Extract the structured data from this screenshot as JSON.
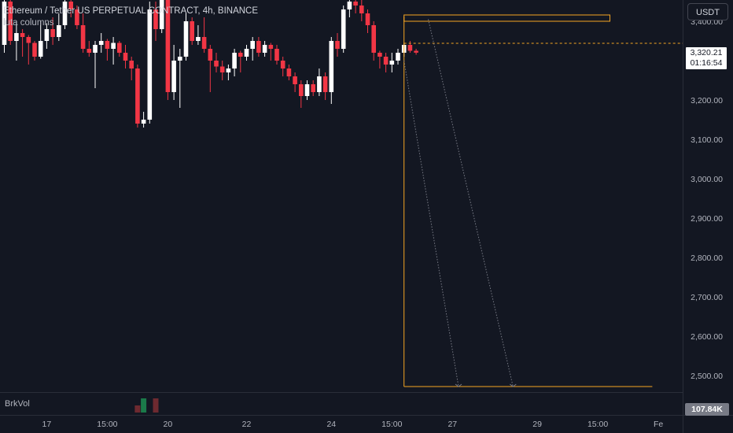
{
  "header": {
    "title": "Ethereum / Tether US PERPETUAL CONTRACT, 4h, BINANCE",
    "indicator": "luta columns"
  },
  "currency_button": "USDT",
  "price_badge": {
    "price": "3,320.21",
    "countdown": "01:16:54"
  },
  "volume_pane": {
    "label": "BrkVol",
    "value_badge": "107.84K"
  },
  "colors": {
    "background": "#131722",
    "up_candle": "#ffffff",
    "down_candle": "#f23645",
    "annotation": "#f5a623",
    "dotted_arrow": "#787b86",
    "vol_green": "#1b7a4a",
    "vol_red": "#6e2a30"
  },
  "chart_data": {
    "type": "candlestick",
    "symbol": "ETHUSDT.P",
    "timeframe": "4h",
    "ylim": [
      2460,
      3480
    ],
    "y_ticks": [
      "3,400.00",
      "3,200.00",
      "3,100.00",
      "3,000.00",
      "2,900.00",
      "2,800.00",
      "2,700.00",
      "2,600.00",
      "2,500.00"
    ],
    "x_ticks": [
      {
        "label": "17",
        "bar": 7
      },
      {
        "label": "15:00",
        "bar": 17
      },
      {
        "label": "20",
        "bar": 27
      },
      {
        "label": "22",
        "bar": 40
      },
      {
        "label": "24",
        "bar": 54
      },
      {
        "label": "15:00",
        "bar": 64
      },
      {
        "label": "27",
        "bar": 74
      },
      {
        "label": "29",
        "bar": 88
      },
      {
        "label": "15:00",
        "bar": 98
      },
      {
        "label": "Fe",
        "bar": 108
      }
    ],
    "candles": [
      {
        "o": 3340,
        "h": 3470,
        "l": 3320,
        "c": 3450
      },
      {
        "o": 3450,
        "h": 3455,
        "l": 3340,
        "c": 3350
      },
      {
        "o": 3350,
        "h": 3400,
        "l": 3300,
        "c": 3370
      },
      {
        "o": 3370,
        "h": 3380,
        "l": 3310,
        "c": 3360
      },
      {
        "o": 3360,
        "h": 3365,
        "l": 3290,
        "c": 3345
      },
      {
        "o": 3345,
        "h": 3350,
        "l": 3300,
        "c": 3310
      },
      {
        "o": 3310,
        "h": 3400,
        "l": 3305,
        "c": 3350
      },
      {
        "o": 3350,
        "h": 3395,
        "l": 3330,
        "c": 3380
      },
      {
        "o": 3380,
        "h": 3410,
        "l": 3340,
        "c": 3360
      },
      {
        "o": 3360,
        "h": 3420,
        "l": 3350,
        "c": 3390
      },
      {
        "o": 3390,
        "h": 3460,
        "l": 3380,
        "c": 3450
      },
      {
        "o": 3450,
        "h": 3470,
        "l": 3410,
        "c": 3430
      },
      {
        "o": 3430,
        "h": 3440,
        "l": 3380,
        "c": 3390
      },
      {
        "o": 3390,
        "h": 3420,
        "l": 3320,
        "c": 3330
      },
      {
        "o": 3330,
        "h": 3350,
        "l": 3310,
        "c": 3320
      },
      {
        "o": 3320,
        "h": 3350,
        "l": 3230,
        "c": 3340
      },
      {
        "o": 3340,
        "h": 3370,
        "l": 3320,
        "c": 3350
      },
      {
        "o": 3350,
        "h": 3355,
        "l": 3300,
        "c": 3330
      },
      {
        "o": 3330,
        "h": 3360,
        "l": 3290,
        "c": 3345
      },
      {
        "o": 3345,
        "h": 3350,
        "l": 3310,
        "c": 3320
      },
      {
        "o": 3320,
        "h": 3340,
        "l": 3280,
        "c": 3300
      },
      {
        "o": 3300,
        "h": 3310,
        "l": 3250,
        "c": 3280
      },
      {
        "o": 3280,
        "h": 3290,
        "l": 3130,
        "c": 3140
      },
      {
        "o": 3140,
        "h": 3170,
        "l": 3130,
        "c": 3150
      },
      {
        "o": 3150,
        "h": 3450,
        "l": 3140,
        "c": 3430
      },
      {
        "o": 3430,
        "h": 3450,
        "l": 3350,
        "c": 3380
      },
      {
        "o": 3380,
        "h": 3470,
        "l": 3370,
        "c": 3460
      },
      {
        "o": 3460,
        "h": 3470,
        "l": 3200,
        "c": 3220
      },
      {
        "o": 3220,
        "h": 3340,
        "l": 3200,
        "c": 3300
      },
      {
        "o": 3300,
        "h": 3330,
        "l": 3180,
        "c": 3310
      },
      {
        "o": 3310,
        "h": 3420,
        "l": 3300,
        "c": 3400
      },
      {
        "o": 3400,
        "h": 3410,
        "l": 3340,
        "c": 3350
      },
      {
        "o": 3350,
        "h": 3390,
        "l": 3340,
        "c": 3360
      },
      {
        "o": 3360,
        "h": 3410,
        "l": 3320,
        "c": 3330
      },
      {
        "o": 3330,
        "h": 3340,
        "l": 3220,
        "c": 3300
      },
      {
        "o": 3300,
        "h": 3320,
        "l": 3270,
        "c": 3285
      },
      {
        "o": 3285,
        "h": 3300,
        "l": 3250,
        "c": 3270
      },
      {
        "o": 3270,
        "h": 3290,
        "l": 3250,
        "c": 3280
      },
      {
        "o": 3280,
        "h": 3330,
        "l": 3260,
        "c": 3320
      },
      {
        "o": 3320,
        "h": 3325,
        "l": 3270,
        "c": 3310
      },
      {
        "o": 3310,
        "h": 3340,
        "l": 3300,
        "c": 3330
      },
      {
        "o": 3330,
        "h": 3360,
        "l": 3300,
        "c": 3350
      },
      {
        "o": 3350,
        "h": 3360,
        "l": 3310,
        "c": 3320
      },
      {
        "o": 3320,
        "h": 3350,
        "l": 3310,
        "c": 3340
      },
      {
        "o": 3340,
        "h": 3345,
        "l": 3300,
        "c": 3330
      },
      {
        "o": 3330,
        "h": 3340,
        "l": 3290,
        "c": 3300
      },
      {
        "o": 3300,
        "h": 3310,
        "l": 3260,
        "c": 3280
      },
      {
        "o": 3280,
        "h": 3290,
        "l": 3250,
        "c": 3260
      },
      {
        "o": 3260,
        "h": 3270,
        "l": 3220,
        "c": 3240
      },
      {
        "o": 3240,
        "h": 3250,
        "l": 3180,
        "c": 3210
      },
      {
        "o": 3210,
        "h": 3250,
        "l": 3200,
        "c": 3240
      },
      {
        "o": 3240,
        "h": 3250,
        "l": 3210,
        "c": 3220
      },
      {
        "o": 3220,
        "h": 3280,
        "l": 3210,
        "c": 3260
      },
      {
        "o": 3260,
        "h": 3270,
        "l": 3200,
        "c": 3220
      },
      {
        "o": 3220,
        "h": 3360,
        "l": 3190,
        "c": 3350
      },
      {
        "o": 3350,
        "h": 3370,
        "l": 3310,
        "c": 3330
      },
      {
        "o": 3330,
        "h": 3440,
        "l": 3320,
        "c": 3430
      },
      {
        "o": 3430,
        "h": 3460,
        "l": 3410,
        "c": 3450
      },
      {
        "o": 3450,
        "h": 3470,
        "l": 3420,
        "c": 3440
      },
      {
        "o": 3440,
        "h": 3455,
        "l": 3400,
        "c": 3420
      },
      {
        "o": 3420,
        "h": 3430,
        "l": 3370,
        "c": 3390
      },
      {
        "o": 3390,
        "h": 3400,
        "l": 3300,
        "c": 3320
      },
      {
        "o": 3320,
        "h": 3325,
        "l": 3280,
        "c": 3310
      },
      {
        "o": 3310,
        "h": 3320,
        "l": 3270,
        "c": 3290
      },
      {
        "o": 3290,
        "h": 3320,
        "l": 3270,
        "c": 3300
      },
      {
        "o": 3300,
        "h": 3330,
        "l": 3290,
        "c": 3320
      },
      {
        "o": 3320,
        "h": 3345,
        "l": 3310,
        "c": 3340
      },
      {
        "o": 3340,
        "h": 3350,
        "l": 3320,
        "c": 3325
      },
      {
        "o": 3325,
        "h": 3330,
        "l": 3315,
        "c": 3320.21
      }
    ],
    "current_price": 3320.21,
    "annotations": {
      "vertical_line_bar": 66,
      "upper_box": {
        "bar_start": 66,
        "bar_end": 100,
        "price_high": 3416,
        "price_low": 3400
      },
      "lower_line": {
        "bar_start": 66,
        "bar_end": 107,
        "price": 2472
      },
      "dashed_level": 3344,
      "dotted_arrows": [
        {
          "from_bar": 66,
          "from_price": 3300,
          "to_bar": 75,
          "to_price": 2472
        },
        {
          "from_bar": 70,
          "from_price": 3405,
          "to_bar": 84,
          "to_price": 2472
        }
      ]
    },
    "volume": {
      "bars": [
        {
          "bar": 22,
          "value": 0.45,
          "up": false
        },
        {
          "bar": 23,
          "value": 0.9,
          "up": true
        },
        {
          "bar": 25,
          "value": 0.9,
          "up": false
        }
      ]
    }
  }
}
